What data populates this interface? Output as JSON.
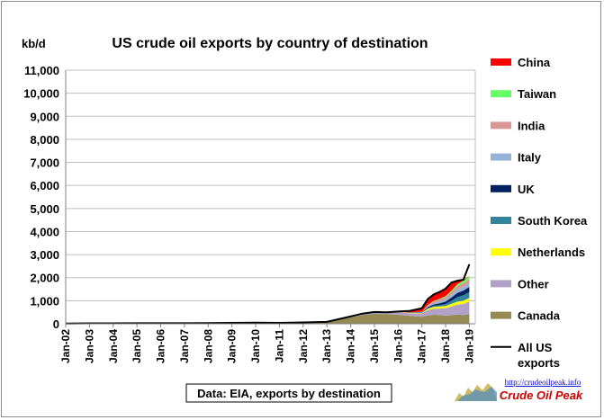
{
  "chart_data": {
    "type": "area",
    "title": "US crude oil exports by country of destination",
    "ylabel": "kb/d",
    "ylim": [
      0,
      11000
    ],
    "yticks": [
      "0",
      "1,000",
      "2,000",
      "3,000",
      "4,000",
      "5,000",
      "6,000",
      "7,000",
      "8,000",
      "9,000",
      "10,000",
      "11,000"
    ],
    "xticks": [
      "Jan-02",
      "Jan-03",
      "Jan-04",
      "Jan-05",
      "Jan-06",
      "Jan-07",
      "Jan-08",
      "Jan-09",
      "Jan-10",
      "Jan-11",
      "Jan-12",
      "Jan-13",
      "Jan-14",
      "Jan-15",
      "Jan-16",
      "Jan-17",
      "Jan-18",
      "Jan-19"
    ],
    "grid": "horizontal",
    "legend_position": "right",
    "x": [
      "2002-01",
      "2003-01",
      "2004-01",
      "2005-01",
      "2006-01",
      "2007-01",
      "2008-01",
      "2009-01",
      "2010-01",
      "2011-01",
      "2012-01",
      "2013-01",
      "2013-07",
      "2014-01",
      "2014-07",
      "2015-01",
      "2015-07",
      "2016-01",
      "2016-07",
      "2017-01",
      "2017-04",
      "2017-07",
      "2017-10",
      "2018-01",
      "2018-04",
      "2018-07",
      "2018-10",
      "2019-01"
    ],
    "series": [
      {
        "name": "Canada",
        "color": "#948A54",
        "values": [
          10,
          15,
          15,
          20,
          20,
          20,
          25,
          35,
          40,
          35,
          50,
          70,
          180,
          280,
          380,
          430,
          420,
          390,
          340,
          300,
          360,
          390,
          380,
          350,
          370,
          400,
          380,
          420
        ]
      },
      {
        "name": "Other",
        "color": "#B1A0C7",
        "values": [
          2,
          3,
          3,
          3,
          3,
          3,
          5,
          5,
          5,
          5,
          8,
          10,
          20,
          40,
          60,
          80,
          80,
          100,
          120,
          150,
          230,
          260,
          280,
          320,
          380,
          430,
          480,
          550
        ]
      },
      {
        "name": "Netherlands",
        "color": "#FFFF00",
        "values": [
          0,
          0,
          0,
          0,
          0,
          0,
          0,
          0,
          0,
          0,
          0,
          0,
          0,
          0,
          0,
          0,
          0,
          10,
          15,
          20,
          60,
          80,
          90,
          100,
          120,
          130,
          140,
          150
        ]
      },
      {
        "name": "South Korea",
        "color": "#31849B",
        "values": [
          0,
          0,
          0,
          0,
          0,
          0,
          0,
          0,
          0,
          0,
          0,
          0,
          0,
          0,
          0,
          0,
          0,
          0,
          5,
          10,
          30,
          50,
          60,
          90,
          130,
          200,
          240,
          260
        ]
      },
      {
        "name": "UK",
        "color": "#002060",
        "values": [
          0,
          0,
          0,
          0,
          0,
          0,
          0,
          0,
          0,
          0,
          0,
          0,
          0,
          0,
          0,
          0,
          0,
          5,
          10,
          15,
          40,
          60,
          80,
          100,
          140,
          180,
          200,
          220
        ]
      },
      {
        "name": "Italy",
        "color": "#95B3D7",
        "values": [
          0,
          0,
          0,
          0,
          0,
          0,
          0,
          0,
          0,
          0,
          0,
          0,
          0,
          0,
          0,
          0,
          0,
          5,
          10,
          20,
          50,
          70,
          80,
          100,
          130,
          150,
          160,
          170
        ]
      },
      {
        "name": "India",
        "color": "#DA9694",
        "values": [
          0,
          0,
          0,
          0,
          0,
          0,
          0,
          0,
          0,
          0,
          0,
          0,
          0,
          0,
          0,
          0,
          0,
          0,
          0,
          10,
          40,
          60,
          80,
          100,
          110,
          140,
          160,
          170
        ]
      },
      {
        "name": "Taiwan",
        "color": "#66FF66",
        "values": [
          0,
          0,
          0,
          0,
          0,
          0,
          0,
          0,
          0,
          0,
          0,
          0,
          0,
          0,
          0,
          0,
          0,
          0,
          0,
          0,
          10,
          20,
          30,
          40,
          60,
          90,
          110,
          130
        ]
      },
      {
        "name": "China",
        "color": "#FF0000",
        "values": [
          0,
          0,
          0,
          0,
          0,
          0,
          0,
          0,
          0,
          0,
          0,
          0,
          0,
          0,
          0,
          0,
          0,
          20,
          60,
          150,
          250,
          280,
          300,
          320,
          350,
          150,
          40,
          10
        ]
      },
      {
        "name": "All US exports",
        "color": "#000000",
        "type": "line",
        "values": [
          12,
          18,
          18,
          23,
          23,
          23,
          30,
          40,
          45,
          40,
          58,
          80,
          200,
          320,
          440,
          510,
          500,
          530,
          560,
          675,
          1070,
          1270,
          1380,
          1520,
          1790,
          1870,
          1910,
          2580
        ]
      }
    ],
    "annotation": "Data: EIA, exports by destination"
  },
  "watermark": {
    "url": "http://crudeoilpeak.info",
    "name": "Crude Oil Peak"
  }
}
